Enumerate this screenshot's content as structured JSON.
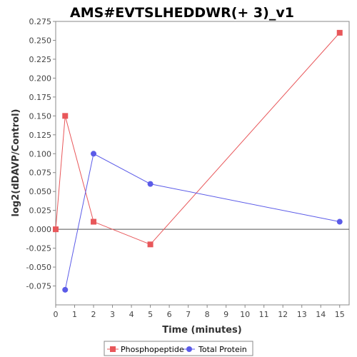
{
  "chart_data": {
    "type": "line",
    "title": "AMS#EVTSLHEDDWR(+ 3)_v1",
    "xlabel": "Time (minutes)",
    "ylabel": "log2(dDAVP/Control)",
    "xlim": [
      0,
      15.5
    ],
    "ylim": [
      -0.1,
      0.275
    ],
    "xticks": [
      "0",
      "1",
      "2",
      "3",
      "4",
      "5",
      "6",
      "7",
      "8",
      "9",
      "10",
      "11",
      "12",
      "13",
      "14",
      "15"
    ],
    "yticks": [
      "0.275",
      "0.250",
      "0.225",
      "0.200",
      "0.175",
      "0.150",
      "0.125",
      "0.100",
      "0.075",
      "0.050",
      "0.025",
      "0.000",
      "-0.025",
      "-0.050",
      "-0.075"
    ],
    "series": [
      {
        "name": "Phosphopeptide",
        "color": "#e8575a",
        "marker": "square",
        "x": [
          0,
          0.5,
          2,
          5,
          15
        ],
        "y": [
          0.0,
          0.15,
          0.01,
          -0.02,
          0.26
        ]
      },
      {
        "name": "Total Protein",
        "color": "#5b5be8",
        "marker": "circle",
        "x": [
          0.5,
          2,
          5,
          15
        ],
        "y": [
          -0.08,
          0.1,
          0.06,
          0.01
        ]
      }
    ],
    "zero_line": true,
    "grid": false,
    "legend_position": "bottom"
  }
}
